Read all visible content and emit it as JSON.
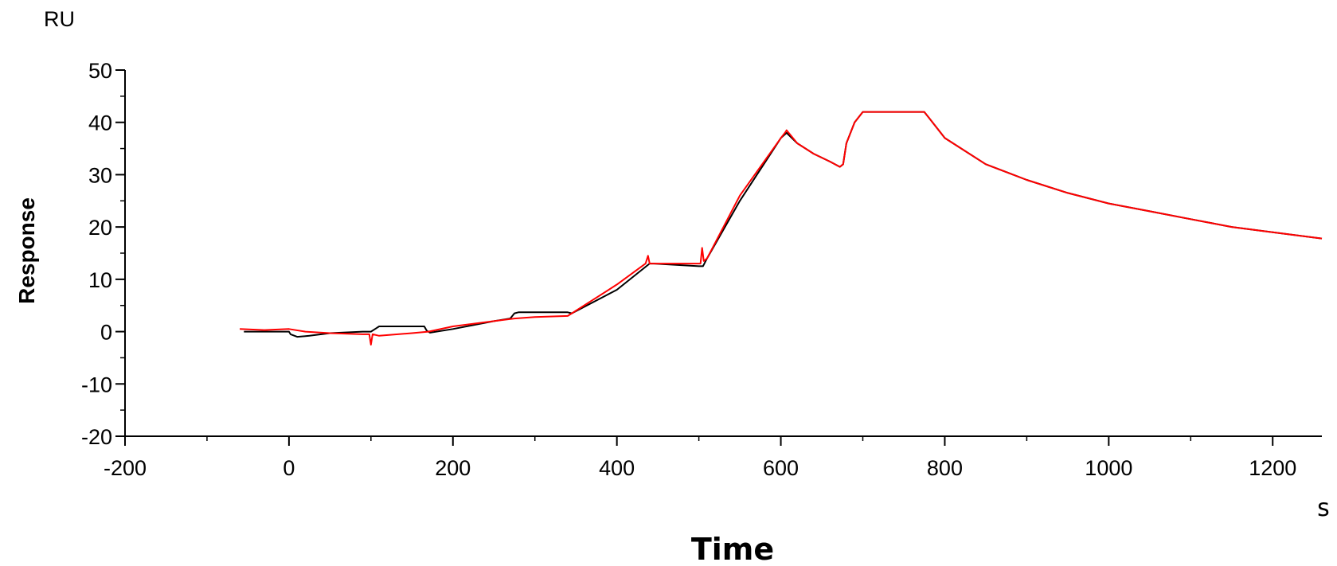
{
  "chart_data": {
    "type": "line",
    "y_unit": "RU",
    "ylabel": "Response",
    "xlabel": "Time",
    "x_unit": "s",
    "xlim": [
      -200,
      1260
    ],
    "ylim": [
      -20,
      50
    ],
    "x_ticks": [
      -200,
      0,
      200,
      400,
      600,
      800,
      1000,
      1200
    ],
    "y_ticks": [
      50,
      40,
      30,
      20,
      10,
      0,
      -10,
      -20
    ],
    "x_tick_labels": [
      "-200",
      "0",
      "200",
      "400",
      "600",
      "800",
      "1000",
      "1200"
    ],
    "y_tick_labels": [
      "50",
      "40",
      "30",
      "20",
      "10",
      "0",
      "-10",
      "-20"
    ],
    "grid": false,
    "series": [
      {
        "color": "#000000",
        "x": [
          -55,
          0,
          2,
          10,
          25,
          50,
          90,
          100,
          105,
          110,
          165,
          168,
          172,
          200,
          250,
          270,
          275,
          280,
          340,
          345,
          400,
          440,
          445,
          500,
          505,
          510,
          550,
          600,
          607,
          620,
          640,
          660,
          672,
          676,
          680,
          690,
          700,
          720,
          770,
          775,
          780,
          800,
          850,
          900,
          950,
          1000,
          1050,
          1100,
          1150,
          1200,
          1260
        ],
        "y": [
          0,
          0,
          -0.5,
          -1,
          -0.8,
          -0.3,
          0,
          0,
          0.5,
          1,
          1,
          0.2,
          -0.2,
          0.5,
          2,
          2.5,
          3.5,
          3.7,
          3.7,
          3.5,
          8,
          13,
          13,
          12.5,
          12.5,
          14,
          25,
          37,
          38,
          36,
          34,
          32.5,
          31.5,
          32,
          36,
          40,
          42,
          42,
          42,
          42,
          41,
          37,
          32,
          29,
          26.5,
          24.5,
          23,
          21.5,
          20,
          19,
          17.8
        ]
      },
      {
        "color": "#ff0000",
        "x": [
          -60,
          -30,
          0,
          20,
          50,
          90,
          98,
          100,
          102,
          110,
          150,
          170,
          200,
          250,
          275,
          300,
          340,
          345,
          400,
          435,
          438,
          440,
          445,
          500,
          502,
          504,
          506,
          510,
          550,
          600,
          605,
          607,
          620,
          640,
          660,
          672,
          676,
          680,
          690,
          700,
          720,
          770,
          775,
          780,
          800,
          850,
          900,
          950,
          1000,
          1050,
          1100,
          1150,
          1200,
          1260
        ],
        "y": [
          0.5,
          0.3,
          0.5,
          0,
          -0.3,
          -0.5,
          -0.5,
          -2.5,
          -0.5,
          -0.8,
          -0.3,
          0,
          1,
          2,
          2.5,
          2.8,
          3,
          3.5,
          9,
          13,
          14.5,
          13,
          13,
          13,
          13,
          16,
          13.5,
          14,
          26,
          37,
          38,
          38.5,
          36,
          34,
          32.5,
          31.5,
          32,
          36,
          40,
          42,
          42,
          42,
          42,
          41,
          37,
          32,
          29,
          26.5,
          24.5,
          23,
          21.5,
          20,
          19,
          17.8
        ]
      }
    ]
  }
}
